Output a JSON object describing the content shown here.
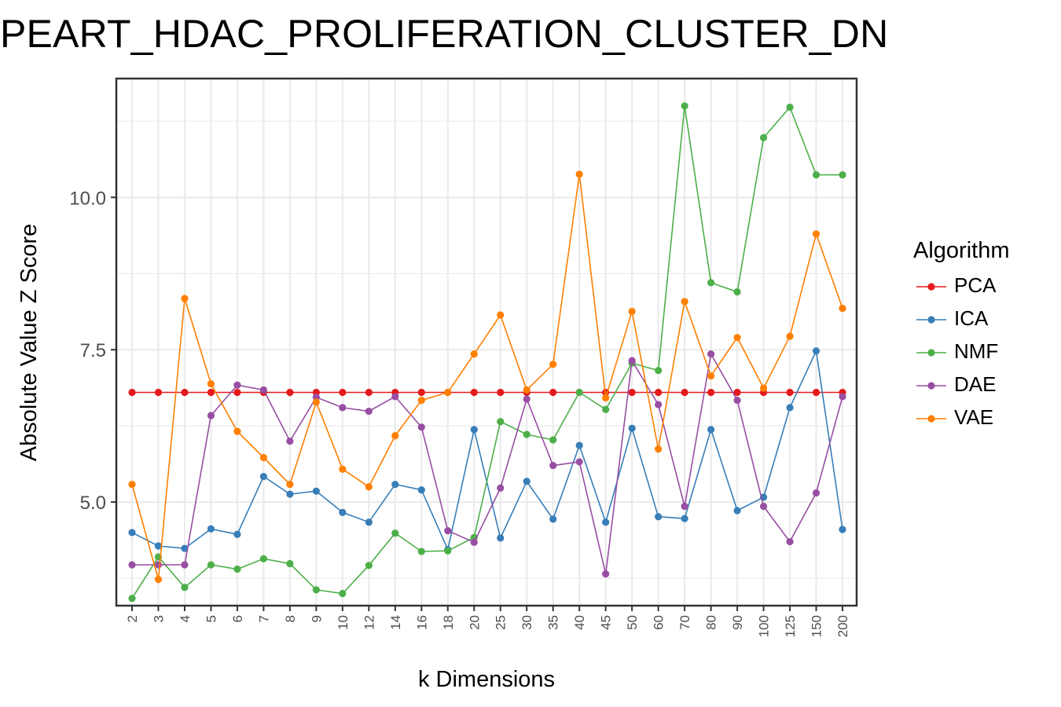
{
  "chart_data": {
    "type": "line",
    "title": "PEART_HDAC_PROLIFERATION_CLUSTER_DN",
    "xlabel": "k Dimensions",
    "ylabel": "Absolute Value Z Score",
    "categories": [
      "2",
      "3",
      "4",
      "5",
      "6",
      "7",
      "8",
      "9",
      "10",
      "12",
      "14",
      "16",
      "18",
      "20",
      "25",
      "30",
      "35",
      "40",
      "45",
      "50",
      "60",
      "70",
      "80",
      "90",
      "100",
      "125",
      "150",
      "200"
    ],
    "ylim": [
      3.3,
      11.95
    ],
    "yticks": [
      5.0,
      7.5,
      10.0
    ],
    "ytick_labels": [
      "5.0",
      "7.5",
      "10.0"
    ],
    "grid": true,
    "legend_title": "Algorithm",
    "legend_position": "right",
    "series": [
      {
        "name": "PCA",
        "color": "#E41A1C",
        "values": [
          6.8,
          6.8,
          6.8,
          6.8,
          6.8,
          6.8,
          6.8,
          6.8,
          6.8,
          6.8,
          6.8,
          6.8,
          6.8,
          6.8,
          6.8,
          6.8,
          6.8,
          6.8,
          6.8,
          6.8,
          6.8,
          6.8,
          6.8,
          6.8,
          6.8,
          6.8,
          6.8,
          6.8
        ]
      },
      {
        "name": "ICA",
        "color": "#377EB8",
        "values": [
          4.5,
          4.28,
          4.24,
          4.56,
          4.47,
          5.42,
          5.13,
          5.18,
          4.83,
          4.67,
          5.29,
          5.2,
          4.22,
          6.19,
          4.41,
          5.34,
          4.72,
          5.93,
          4.67,
          6.21,
          4.76,
          4.73,
          6.19,
          4.86,
          5.08,
          6.55,
          7.48,
          4.55
        ]
      },
      {
        "name": "NMF",
        "color": "#4DAF4A",
        "values": [
          3.42,
          4.1,
          3.6,
          3.97,
          3.9,
          4.07,
          3.99,
          3.56,
          3.5,
          3.96,
          4.49,
          4.19,
          4.2,
          4.42,
          6.32,
          6.11,
          6.02,
          6.8,
          6.52,
          7.28,
          7.16,
          11.5,
          8.6,
          8.45,
          10.98,
          11.48,
          10.37,
          10.37
        ]
      },
      {
        "name": "DAE",
        "color": "#984EA3",
        "values": [
          3.97,
          3.97,
          3.97,
          6.42,
          6.92,
          6.84,
          6.0,
          6.72,
          6.55,
          6.49,
          6.73,
          6.23,
          4.53,
          4.34,
          5.23,
          6.69,
          5.6,
          5.66,
          3.82,
          7.32,
          6.6,
          4.93,
          7.43,
          6.67,
          4.93,
          4.35,
          5.15,
          6.73
        ]
      },
      {
        "name": "VAE",
        "color": "#FF7F00",
        "values": [
          5.29,
          3.73,
          8.34,
          6.94,
          6.16,
          5.73,
          5.29,
          6.64,
          5.54,
          5.25,
          6.09,
          6.67,
          6.8,
          7.43,
          8.07,
          6.84,
          7.26,
          10.38,
          6.71,
          8.13,
          5.87,
          8.29,
          7.07,
          7.7,
          6.87,
          7.72,
          9.4,
          8.18
        ]
      }
    ]
  }
}
